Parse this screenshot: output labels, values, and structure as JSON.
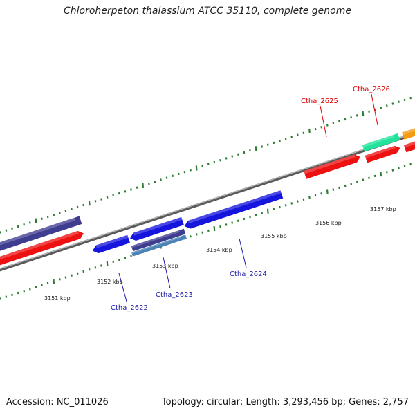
{
  "title": "Chloroherpeton thalassium ATCC 35110, complete genome",
  "footer": {
    "accession": "Accession: NC_011026",
    "stats": "Topology: circular; Length: 3,293,456 bp; Genes: 2,757"
  },
  "scale": {
    "unit": "kbp",
    "labels": [
      "3151 kbp",
      "3152 kbp",
      "3153 kbp",
      "3154 kbp",
      "3155 kbp",
      "3156 kbp",
      "3157 kbp"
    ]
  },
  "gene_labels": [
    {
      "text": "Ctha_2622",
      "strand": "reverse"
    },
    {
      "text": "Ctha_2623",
      "strand": "reverse"
    },
    {
      "text": "Ctha_2624",
      "strand": "reverse"
    },
    {
      "text": "Ctha_2625",
      "strand": "forward"
    },
    {
      "text": "Ctha_2626",
      "strand": "forward"
    }
  ],
  "colors": {
    "backbone": "#888888",
    "ticks": "#2e7d32",
    "forward_label": "#dd0000",
    "reverse_label": "#1a1aa6",
    "cds_forward": "#ee1111",
    "cds_reverse": "#1515dd",
    "purple_feature": "#3f3d8f",
    "rna_feature": "#22e39b",
    "orange_feature": "#f39c12",
    "steelblue_feature": "#4a82b8"
  }
}
